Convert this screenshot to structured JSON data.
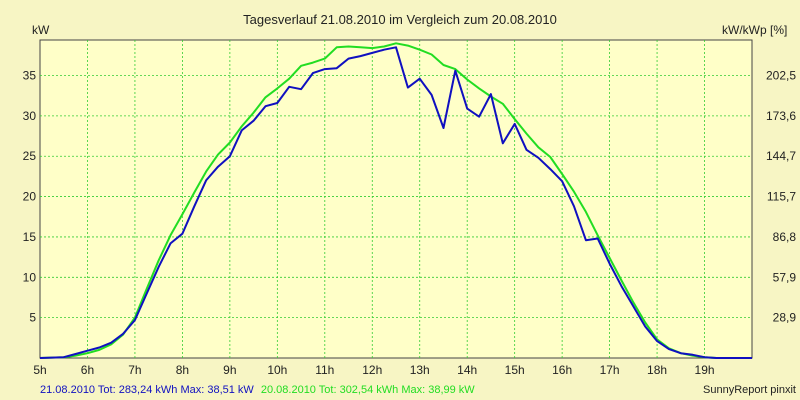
{
  "chart_data": {
    "type": "line",
    "title": "Tagesverlauf 21.08.2010 im Vergleich zum 20.08.2010",
    "ylabel_left": "kW",
    "ylabel_right": "kW/kWp [%]",
    "xlim": [
      5,
      20
    ],
    "ylim": [
      0,
      39.4
    ],
    "x_ticks": [
      5,
      6,
      7,
      8,
      9,
      10,
      11,
      12,
      13,
      14,
      15,
      16,
      17,
      18,
      19
    ],
    "x_tick_labels": [
      "5h",
      "6h",
      "7h",
      "8h",
      "9h",
      "10h",
      "11h",
      "12h",
      "13h",
      "14h",
      "15h",
      "16h",
      "17h",
      "18h",
      "19h"
    ],
    "y_ticks_left": [
      5,
      10,
      15,
      20,
      25,
      30,
      35
    ],
    "y_tick_labels_left": [
      "5",
      "10",
      "15",
      "20",
      "25",
      "30",
      "35"
    ],
    "y_ticks_right_values": [
      5,
      10,
      15,
      20,
      25,
      30,
      35
    ],
    "y_tick_labels_right": [
      "28,9",
      "57,9",
      "86,8",
      "115,7",
      "144,7",
      "173,6",
      "202,5"
    ],
    "grid": true,
    "legend": "bottom",
    "colors": {
      "background": "#f7f5c4",
      "plot_area": "#ffffc8",
      "grid": "#33cc33",
      "series_1": "#1010c0",
      "series_2": "#22dd22",
      "footer_right": "#222222"
    },
    "series": [
      {
        "name": "21.08.2010",
        "legend_text": "21.08.2010 Tot: 283,24 kWh Max: 38,51 kW",
        "color": "#1010c0",
        "points": [
          [
            5.0,
            0
          ],
          [
            5.5,
            0.1
          ],
          [
            5.75,
            0.5
          ],
          [
            6.0,
            0.9
          ],
          [
            6.25,
            1.3
          ],
          [
            6.5,
            1.9
          ],
          [
            6.75,
            3.0
          ],
          [
            7.0,
            4.7
          ],
          [
            7.25,
            8.0
          ],
          [
            7.5,
            11.3
          ],
          [
            7.75,
            14.2
          ],
          [
            8.0,
            15.4
          ],
          [
            8.25,
            18.8
          ],
          [
            8.5,
            22.0
          ],
          [
            8.75,
            23.7
          ],
          [
            9.0,
            25.0
          ],
          [
            9.25,
            28.2
          ],
          [
            9.5,
            29.4
          ],
          [
            9.75,
            31.2
          ],
          [
            10.0,
            31.6
          ],
          [
            10.25,
            33.6
          ],
          [
            10.5,
            33.3
          ],
          [
            10.75,
            35.3
          ],
          [
            11.0,
            35.8
          ],
          [
            11.25,
            35.9
          ],
          [
            11.5,
            37.1
          ],
          [
            11.75,
            37.4
          ],
          [
            12.0,
            37.8
          ],
          [
            12.25,
            38.2
          ],
          [
            12.5,
            38.5
          ],
          [
            12.75,
            33.5
          ],
          [
            13.0,
            34.6
          ],
          [
            13.25,
            32.6
          ],
          [
            13.5,
            28.5
          ],
          [
            13.75,
            35.6
          ],
          [
            14.0,
            30.9
          ],
          [
            14.25,
            29.9
          ],
          [
            14.5,
            32.7
          ],
          [
            14.75,
            26.6
          ],
          [
            15.0,
            29.0
          ],
          [
            15.25,
            25.8
          ],
          [
            15.5,
            24.8
          ],
          [
            15.75,
            23.4
          ],
          [
            16.0,
            21.9
          ],
          [
            16.25,
            18.8
          ],
          [
            16.5,
            14.6
          ],
          [
            16.75,
            14.8
          ],
          [
            17.0,
            11.7
          ],
          [
            17.25,
            8.9
          ],
          [
            17.5,
            6.4
          ],
          [
            17.75,
            3.9
          ],
          [
            18.0,
            2.1
          ],
          [
            18.25,
            1.1
          ],
          [
            18.5,
            0.6
          ],
          [
            18.75,
            0.4
          ],
          [
            19.0,
            0.1
          ],
          [
            19.25,
            0
          ],
          [
            20.0,
            0
          ]
        ]
      },
      {
        "name": "20.08.2010",
        "legend_text": "20.08.2010 Tot: 302,54 kWh Max: 38,99 kW",
        "color": "#22dd22",
        "points": [
          [
            5.0,
            0
          ],
          [
            5.5,
            0.1
          ],
          [
            5.75,
            0.3
          ],
          [
            6.0,
            0.6
          ],
          [
            6.25,
            1.0
          ],
          [
            6.5,
            1.7
          ],
          [
            6.75,
            2.9
          ],
          [
            7.0,
            5.0
          ],
          [
            7.25,
            8.6
          ],
          [
            7.5,
            12.1
          ],
          [
            7.75,
            15.2
          ],
          [
            8.0,
            17.8
          ],
          [
            8.25,
            20.5
          ],
          [
            8.5,
            23.1
          ],
          [
            8.75,
            25.2
          ],
          [
            9.0,
            26.7
          ],
          [
            9.25,
            28.7
          ],
          [
            9.5,
            30.4
          ],
          [
            9.75,
            32.3
          ],
          [
            10.0,
            33.4
          ],
          [
            10.25,
            34.6
          ],
          [
            10.5,
            36.2
          ],
          [
            10.75,
            36.6
          ],
          [
            11.0,
            37.1
          ],
          [
            11.25,
            38.5
          ],
          [
            11.5,
            38.6
          ],
          [
            11.75,
            38.5
          ],
          [
            12.0,
            38.4
          ],
          [
            12.25,
            38.6
          ],
          [
            12.5,
            38.99
          ],
          [
            12.75,
            38.7
          ],
          [
            13.0,
            38.2
          ],
          [
            13.25,
            37.6
          ],
          [
            13.5,
            36.3
          ],
          [
            13.75,
            35.8
          ],
          [
            14.0,
            34.5
          ],
          [
            14.25,
            33.4
          ],
          [
            14.5,
            32.4
          ],
          [
            14.75,
            31.5
          ],
          [
            15.0,
            29.6
          ],
          [
            15.25,
            27.8
          ],
          [
            15.5,
            26.1
          ],
          [
            15.75,
            24.9
          ],
          [
            16.0,
            22.8
          ],
          [
            16.25,
            20.6
          ],
          [
            16.5,
            18.1
          ],
          [
            16.75,
            15.2
          ],
          [
            17.0,
            12.4
          ],
          [
            17.25,
            9.6
          ],
          [
            17.5,
            6.9
          ],
          [
            17.75,
            4.4
          ],
          [
            18.0,
            2.3
          ],
          [
            18.25,
            1.2
          ],
          [
            18.5,
            0.6
          ],
          [
            18.75,
            0.3
          ],
          [
            19.0,
            0.1
          ],
          [
            19.25,
            0
          ],
          [
            20.0,
            0
          ]
        ]
      }
    ],
    "footer_right": "SunnyReport pinxit"
  }
}
